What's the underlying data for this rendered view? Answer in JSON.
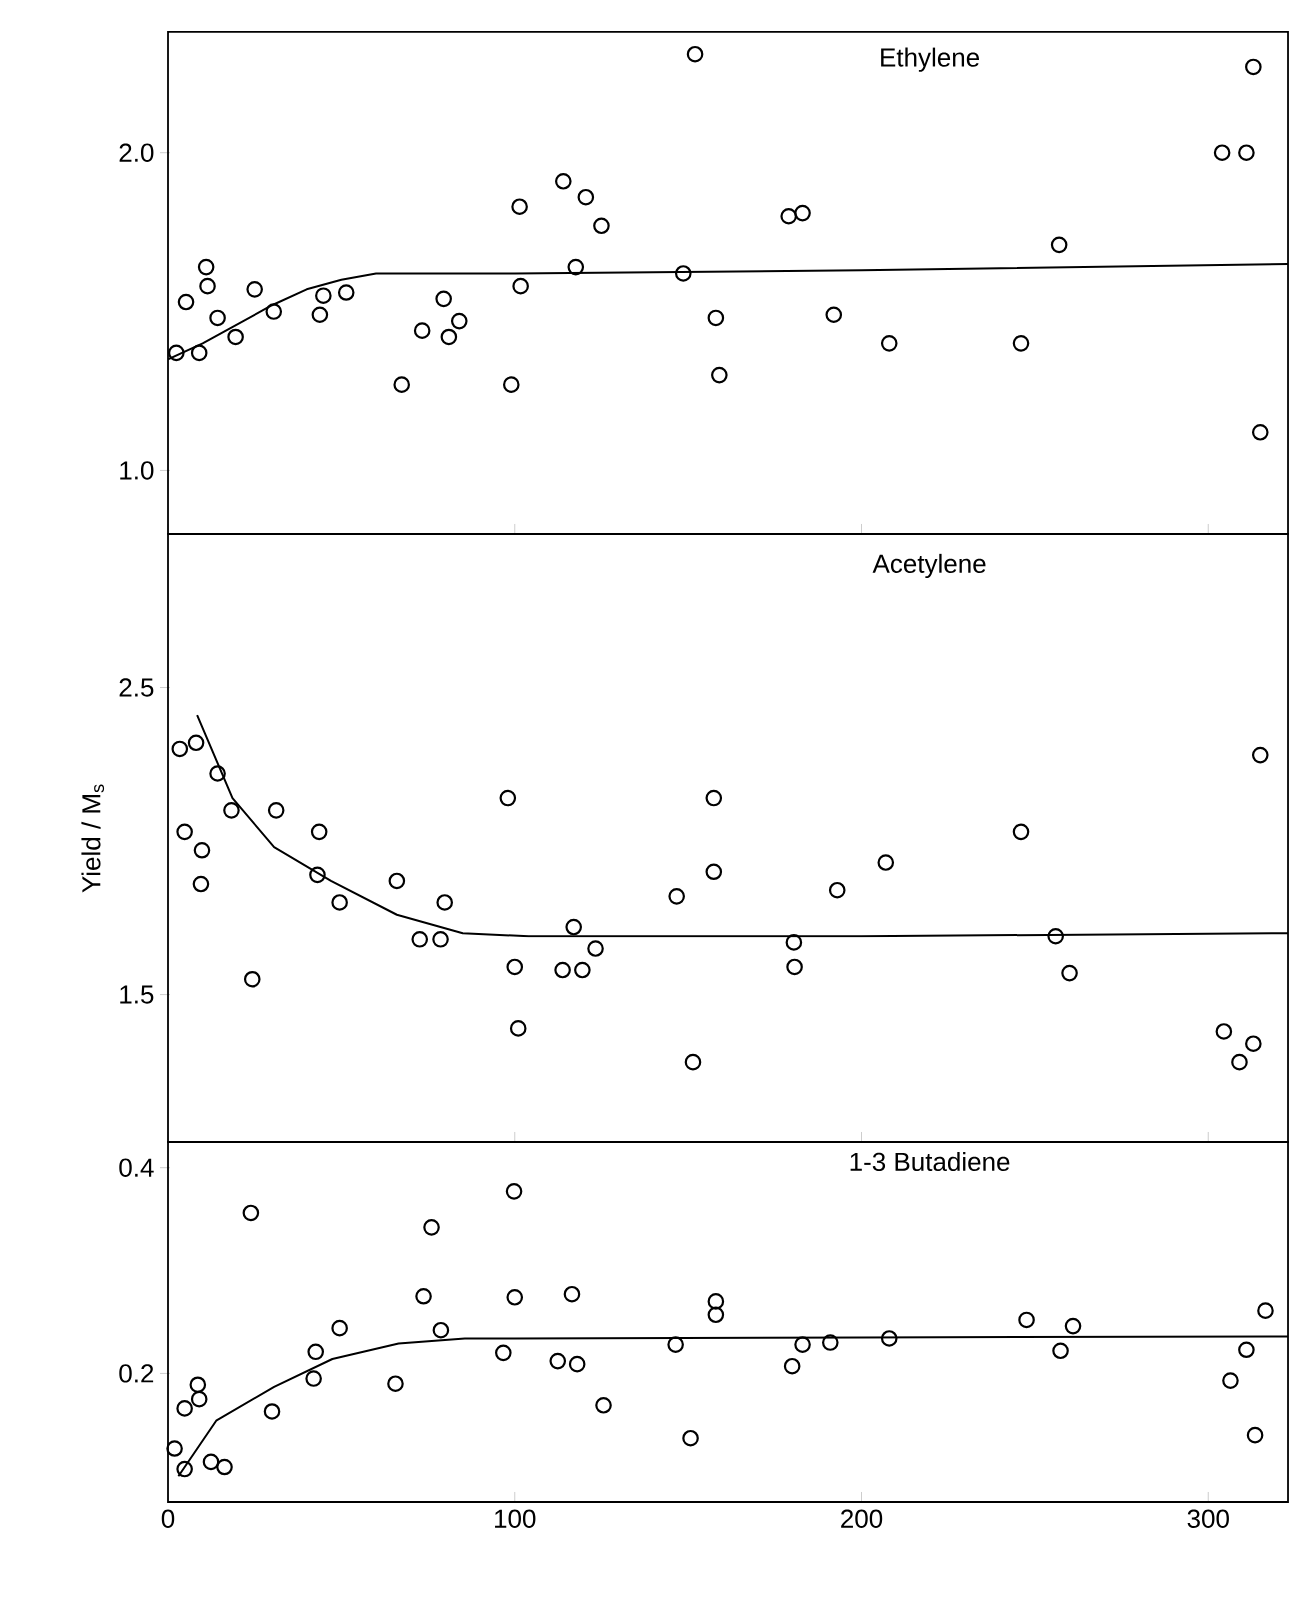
{
  "chart_data": [
    {
      "type": "scatter",
      "title": "Ethylene",
      "xlim": [
        0,
        323
      ],
      "ylim": [
        0.8,
        2.38
      ],
      "xticks": [
        0,
        100,
        200,
        300
      ],
      "yticks": [
        {
          "value": 1,
          "label": "1.0"
        },
        {
          "value": 2,
          "label": "2.0"
        }
      ],
      "tick_labels": "y",
      "series": [
        {
          "marker": "circle",
          "color": "#000000",
          "x": [
            2.4,
            5.2,
            9,
            11,
            11.4,
            14.3,
            19.5,
            25,
            30.5,
            43.8,
            44.8,
            51.4,
            67.4,
            73.3,
            79.5,
            81,
            84,
            99,
            101.4,
            101.7,
            114,
            117.6,
            120.5,
            125,
            148.6,
            152,
            158,
            159,
            179,
            183,
            192,
            208,
            246,
            257,
            304,
            311,
            313,
            315
          ],
          "values": [
            1.37,
            1.53,
            1.37,
            1.64,
            1.58,
            1.48,
            1.42,
            1.57,
            1.5,
            1.49,
            1.55,
            1.56,
            1.27,
            1.44,
            1.54,
            1.42,
            1.47,
            1.27,
            1.83,
            1.58,
            1.91,
            1.64,
            1.86,
            1.77,
            1.62,
            2.31,
            1.48,
            1.3,
            1.8,
            1.81,
            1.49,
            1.4,
            1.4,
            1.71,
            2.0,
            2.0,
            2.27,
            1.12
          ]
        },
        {
          "type": "line",
          "color": "#000000",
          "x": [
            0,
            10,
            20,
            30,
            40,
            50,
            60,
            100,
            200,
            323
          ],
          "values": [
            1.35,
            1.4,
            1.46,
            1.52,
            1.57,
            1.6,
            1.62,
            1.62,
            1.63,
            1.65
          ]
        }
      ]
    },
    {
      "type": "scatter",
      "title": "Acetylene",
      "ylabel": "Yield / M$_{s}$",
      "xlim": [
        0,
        323
      ],
      "ylim": [
        1.02,
        3.0
      ],
      "xticks": [
        0,
        100,
        200,
        300
      ],
      "yticks": [
        1.5,
        2.5
      ],
      "tick_labels": "y",
      "series": [
        {
          "marker": "circle",
          "color": "#000000",
          "x": [
            3.4,
            4.8,
            8.1,
            9.8,
            9.5,
            14.3,
            18.3,
            24.3,
            31.2,
            43.6,
            43.1,
            49.5,
            66,
            72.6,
            78.6,
            79.8,
            98,
            100,
            101,
            113.8,
            117,
            119.5,
            123.3,
            146.7,
            151.4,
            157.4,
            157.4,
            180.5,
            180.7,
            193,
            207,
            246,
            256,
            260,
            304.5,
            309,
            313,
            315
          ],
          "values": [
            2.3,
            2.03,
            2.32,
            1.97,
            1.86,
            2.22,
            2.1,
            1.55,
            2.1,
            2.03,
            1.89,
            1.8,
            1.87,
            1.68,
            1.68,
            1.8,
            2.14,
            1.59,
            1.39,
            1.58,
            1.72,
            1.58,
            1.65,
            1.82,
            1.28,
            2.14,
            1.9,
            1.67,
            1.59,
            1.84,
            1.93,
            2.03,
            1.69,
            1.57,
            1.38,
            1.28,
            1.34,
            2.28
          ]
        },
        {
          "type": "line",
          "color": "#000000",
          "x": [
            8.4,
            18.6,
            30.6,
            47,
            66,
            85,
            104,
            200,
            323
          ],
          "values": [
            2.41,
            2.14,
            1.98,
            1.87,
            1.76,
            1.7,
            1.69,
            1.69,
            1.7
          ]
        }
      ]
    },
    {
      "type": "scatter",
      "title": "1-3 Butadiene",
      "xlim": [
        0,
        323
      ],
      "ylim": [
        0.075,
        0.425
      ],
      "xticks": [
        0,
        100,
        200,
        300
      ],
      "yticks": [
        {
          "value": 0.2,
          "label": "0.2"
        },
        {
          "value": 0.4,
          "label": "0.4"
        }
      ],
      "series": [
        {
          "marker": "circle",
          "color": "#000000",
          "x": [
            1.9,
            4.8,
            4.8,
            8.6,
            9,
            12.4,
            16.3,
            23.9,
            30,
            42,
            42.6,
            49.5,
            65.6,
            73.7,
            76,
            78.7,
            96.7,
            99.8,
            100,
            112.4,
            116.5,
            118,
            125.6,
            146.4,
            150.7,
            158,
            158,
            180,
            183,
            191,
            208,
            247.6,
            257.4,
            261,
            306.4,
            311,
            313.5,
            316.5
          ],
          "values": [
            0.127,
            0.107,
            0.166,
            0.189,
            0.175,
            0.114,
            0.109,
            0.356,
            0.163,
            0.195,
            0.221,
            0.244,
            0.19,
            0.275,
            0.342,
            0.242,
            0.22,
            0.377,
            0.274,
            0.212,
            0.277,
            0.209,
            0.169,
            0.228,
            0.137,
            0.27,
            0.257,
            0.207,
            0.228,
            0.23,
            0.234,
            0.252,
            0.222,
            0.246,
            0.193,
            0.223,
            0.14,
            0.261
          ]
        },
        {
          "type": "line",
          "color": "#000000",
          "x": [
            3,
            13.9,
            30.6,
            47.4,
            66.5,
            85.6,
            100,
            200,
            323
          ],
          "values": [
            0.1,
            0.154,
            0.187,
            0.214,
            0.229,
            0.234,
            0.234,
            0.235,
            0.236
          ]
        }
      ]
    }
  ]
}
